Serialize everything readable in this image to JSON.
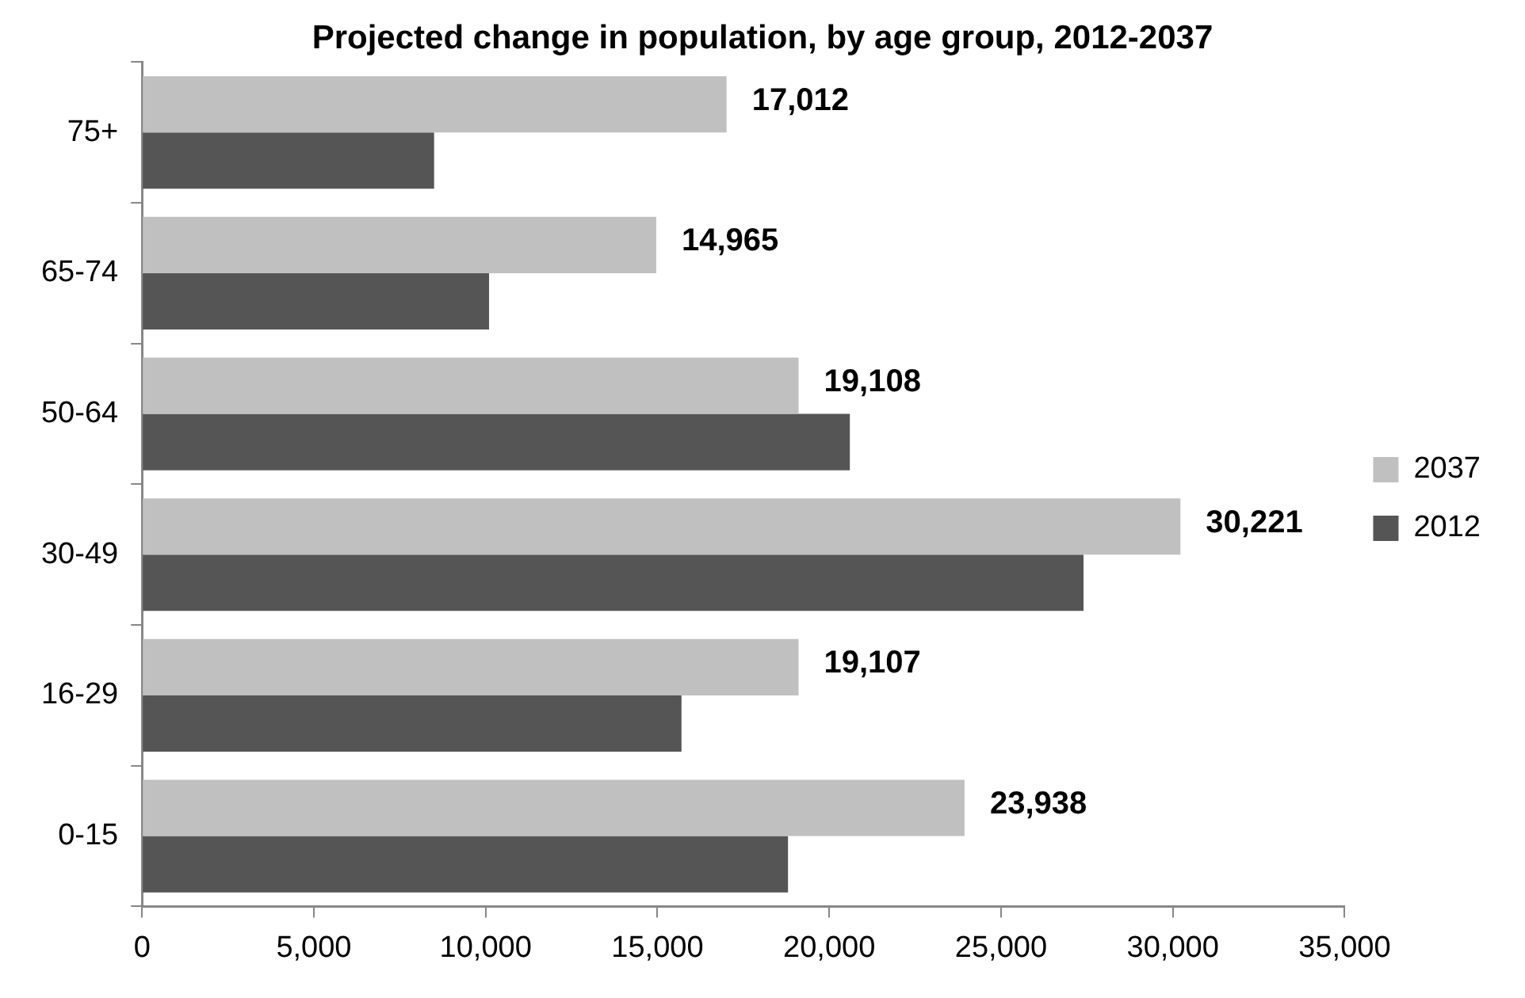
{
  "chart_data": {
    "type": "bar",
    "orientation": "horizontal",
    "title": "Projected change in population, by age group, 2012-2037",
    "categories": [
      "75+",
      "65-74",
      "50-64",
      "30-49",
      "16-29",
      "0-15"
    ],
    "series": [
      {
        "name": "2037",
        "color": "#c0c0c0",
        "values": [
          17012,
          14965,
          19108,
          30221,
          19107,
          23938
        ],
        "value_labels": [
          "17,012",
          "14,965",
          "19,108",
          "30,221",
          "19,107",
          "23,938"
        ]
      },
      {
        "name": "2012",
        "color": "#555555",
        "values": [
          8500,
          10100,
          20600,
          27400,
          15700,
          18800
        ]
      }
    ],
    "xlim": [
      0,
      35000
    ],
    "xticks": [
      {
        "value": 0,
        "label": "0"
      },
      {
        "value": 5000,
        "label": "5,000"
      },
      {
        "value": 10000,
        "label": "10,000"
      },
      {
        "value": 15000,
        "label": "15,000"
      },
      {
        "value": 20000,
        "label": "20,000"
      },
      {
        "value": 25000,
        "label": "25,000"
      },
      {
        "value": 30000,
        "label": "30,000"
      },
      {
        "value": 35000,
        "label": "35,000"
      }
    ],
    "grid": false,
    "legend": "right"
  }
}
